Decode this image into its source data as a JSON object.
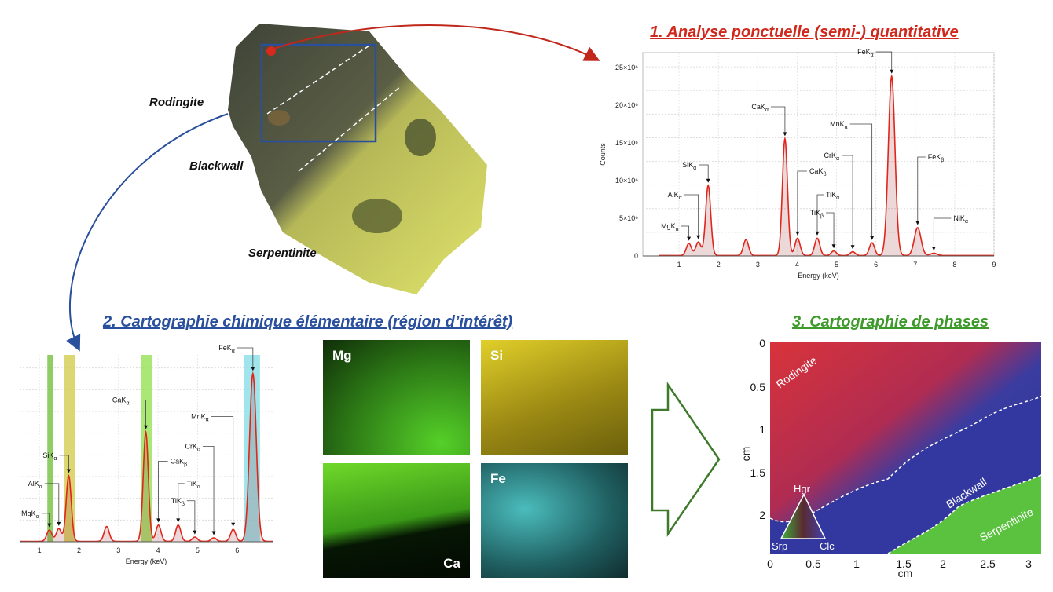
{
  "sample": {
    "labels": [
      "Rodingite",
      "Blackwall",
      "Serpentinite"
    ]
  },
  "sections": {
    "s1_title": "1. Analyse ponctuelle (semi-) quantitative",
    "s2_title": "2. Cartographie chimique élémentaire (région d’intérêt)",
    "s3_title": "3. Cartographie de phases"
  },
  "colors": {
    "s1": "#d0281c",
    "s2": "#2a4f9c",
    "s3": "#3d9a2a",
    "spectrum": "#e0261b"
  },
  "maps": {
    "tiles": [
      {
        "label": "Mg",
        "color": "#3fae1f"
      },
      {
        "label": "Si",
        "color": "#c9b418"
      },
      {
        "label": "Ca",
        "color": "#4fc41c"
      },
      {
        "label": "Fe",
        "color": "#3fb8b8"
      }
    ]
  },
  "phase_map": {
    "regions": [
      "Rodingite",
      "Blackwall",
      "Serpentinite"
    ],
    "legend": {
      "top": "Hgr",
      "left": "Srp",
      "right": "Clc"
    },
    "x_ticks": [
      "0",
      "0.5",
      "1",
      "1.5",
      "2",
      "2.5",
      "3"
    ],
    "y_ticks": [
      "0",
      "0.5",
      "1",
      "1.5",
      "2"
    ],
    "x_label": "cm",
    "y_label": "cm"
  },
  "chart_data": [
    {
      "type": "line",
      "title": "",
      "xlabel": "Energy (keV)",
      "ylabel": "Counts",
      "xlim": [
        0.08,
        9
      ],
      "ylim": [
        0,
        27000000
      ],
      "x_ticks": [
        "1",
        "2",
        "3",
        "4",
        "5",
        "6",
        "7",
        "8",
        "9"
      ],
      "y_ticks": [
        "0",
        "5×10⁶",
        "10×10⁶",
        "15×10⁶",
        "20×10⁶",
        "25×10⁶"
      ],
      "peaks": [
        {
          "base": "MgK",
          "sub": "α",
          "energy": 1.25,
          "counts": 1600000
        },
        {
          "base": "AlK",
          "sub": "α",
          "energy": 1.49,
          "counts": 1800000
        },
        {
          "base": "SiK",
          "sub": "α",
          "energy": 1.74,
          "counts": 9300000
        },
        {
          "base": "",
          "sub": "",
          "energy": 2.7,
          "counts": 2100000
        },
        {
          "base": "CaK",
          "sub": "α",
          "energy": 3.69,
          "counts": 15500000
        },
        {
          "base": "CaK",
          "sub": "β",
          "energy": 4.01,
          "counts": 2300000
        },
        {
          "base": "TiK",
          "sub": "α",
          "energy": 4.51,
          "counts": 2300000
        },
        {
          "base": "TiK",
          "sub": "β",
          "energy": 4.93,
          "counts": 600000
        },
        {
          "base": "CrK",
          "sub": "α",
          "energy": 5.41,
          "counts": 500000
        },
        {
          "base": "MnK",
          "sub": "α",
          "energy": 5.9,
          "counts": 1700000
        },
        {
          "base": "FeK",
          "sub": "α",
          "energy": 6.4,
          "counts": 23800000
        },
        {
          "base": "FeK",
          "sub": "β",
          "energy": 7.06,
          "counts": 3700000
        },
        {
          "base": "NiK",
          "sub": "α",
          "energy": 7.47,
          "counts": 300000
        }
      ]
    },
    {
      "type": "line",
      "title": "",
      "xlabel": "Energy (keV)",
      "ylabel": "",
      "xlim": [
        0.5,
        6.9
      ],
      "ylim": [
        0,
        26500000
      ],
      "x_ticks": [
        "1",
        "2",
        "3",
        "4",
        "5",
        "6"
      ],
      "bands": [
        {
          "element": "Mg",
          "from": 1.2,
          "to": 1.35,
          "color": "#7dc44a"
        },
        {
          "element": "Si",
          "from": 1.62,
          "to": 1.9,
          "color": "#d6cf5a"
        },
        {
          "element": "Ca",
          "from": 3.58,
          "to": 3.84,
          "color": "#9be35e"
        },
        {
          "element": "Fe",
          "from": 6.18,
          "to": 6.58,
          "color": "#8fe0e8"
        }
      ],
      "peaks": [
        {
          "base": "MgK",
          "sub": "α",
          "energy": 1.25,
          "counts": 1600000
        },
        {
          "base": "AlK",
          "sub": "α",
          "energy": 1.49,
          "counts": 1800000
        },
        {
          "base": "SiK",
          "sub": "α",
          "energy": 1.74,
          "counts": 9300000
        },
        {
          "base": "",
          "sub": "",
          "energy": 2.7,
          "counts": 2100000
        },
        {
          "base": "CaK",
          "sub": "α",
          "energy": 3.69,
          "counts": 15500000
        },
        {
          "base": "CaK",
          "sub": "β",
          "energy": 4.01,
          "counts": 2300000
        },
        {
          "base": "TiK",
          "sub": "α",
          "energy": 4.51,
          "counts": 2300000
        },
        {
          "base": "TiK",
          "sub": "β",
          "energy": 4.93,
          "counts": 600000
        },
        {
          "base": "CrK",
          "sub": "α",
          "energy": 5.41,
          "counts": 500000
        },
        {
          "base": "MnK",
          "sub": "α",
          "energy": 5.9,
          "counts": 1700000
        },
        {
          "base": "FeK",
          "sub": "α",
          "energy": 6.4,
          "counts": 23800000
        }
      ]
    }
  ]
}
